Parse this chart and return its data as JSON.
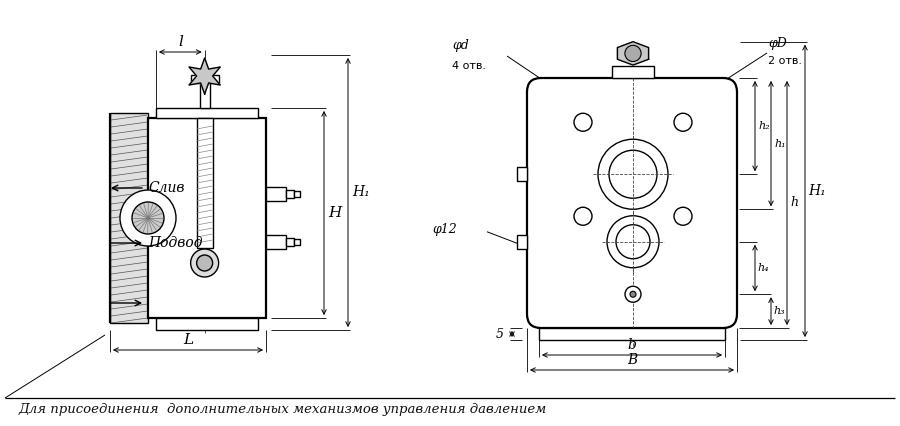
{
  "bg_color": "#ffffff",
  "line_color": "#000000",
  "thin_lw": 0.6,
  "medium_lw": 1.0,
  "thick_lw": 1.6,
  "bottom_text": "Для присоединения  дополнительных механизмов управления давлением",
  "label_sliv": "Слив",
  "label_podvod": "Подвод",
  "label_l": "l",
  "label_L": "L",
  "label_H": "H",
  "label_H1": "H₁",
  "label_phiD": "φD",
  "label_2otv": "2 отв.",
  "label_phid": "φd",
  "label_4otv": "4 отв.",
  "label_phi12": "φ12",
  "label_h2": "h₂",
  "label_h1": "h₁",
  "label_h": "h",
  "label_h4": "h₄",
  "label_h3": "h₃",
  "label_b": "b",
  "label_B": "B",
  "label_5": "5"
}
